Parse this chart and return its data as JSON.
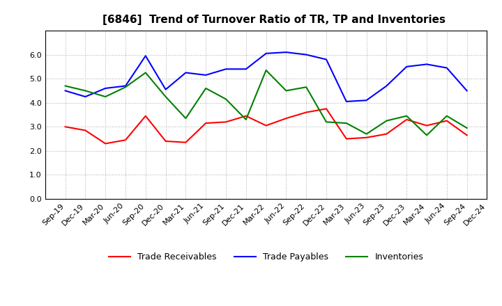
{
  "title": "[6846]  Trend of Turnover Ratio of TR, TP and Inventories",
  "x_labels": [
    "Sep-19",
    "Dec-19",
    "Mar-20",
    "Jun-20",
    "Sep-20",
    "Dec-20",
    "Mar-21",
    "Jun-21",
    "Sep-21",
    "Dec-21",
    "Mar-22",
    "Jun-22",
    "Sep-22",
    "Dec-22",
    "Mar-23",
    "Jun-23",
    "Sep-23",
    "Dec-23",
    "Mar-24",
    "Jun-24",
    "Sep-24",
    "Dec-24"
  ],
  "trade_receivables": [
    3.0,
    2.85,
    2.3,
    2.45,
    3.45,
    2.4,
    2.35,
    3.15,
    3.2,
    3.45,
    3.05,
    3.35,
    3.6,
    3.75,
    2.5,
    2.55,
    2.7,
    3.3,
    3.05,
    3.25,
    2.65,
    null
  ],
  "trade_payables": [
    4.5,
    4.25,
    4.6,
    4.7,
    5.95,
    4.55,
    5.25,
    5.15,
    5.4,
    5.4,
    6.05,
    6.1,
    6.0,
    5.8,
    4.05,
    4.1,
    4.7,
    5.5,
    5.6,
    5.45,
    4.5,
    null
  ],
  "inventories": [
    4.7,
    4.5,
    4.25,
    4.65,
    5.25,
    4.25,
    3.35,
    4.6,
    4.15,
    3.3,
    5.35,
    4.5,
    4.65,
    3.2,
    3.15,
    2.7,
    3.25,
    3.45,
    2.65,
    3.45,
    2.95,
    null
  ],
  "colors": {
    "trade_receivables": "#ff0000",
    "trade_payables": "#0000ff",
    "inventories": "#008000"
  },
  "ylim": [
    0.0,
    7.0
  ],
  "yticks": [
    0.0,
    1.0,
    2.0,
    3.0,
    4.0,
    5.0,
    6.0
  ],
  "background_color": "#ffffff",
  "grid_color": "#aaaaaa",
  "title_fontsize": 11,
  "tick_fontsize": 8,
  "legend_fontsize": 9
}
